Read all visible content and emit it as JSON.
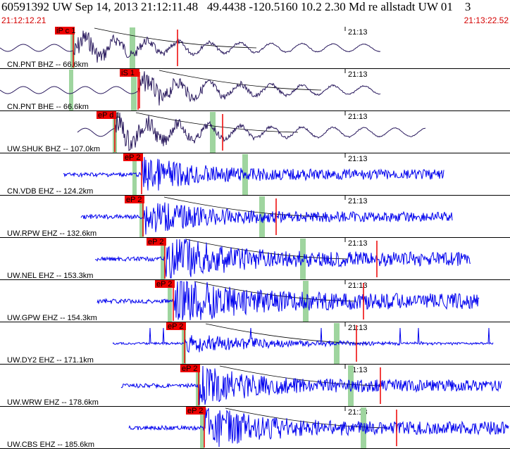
{
  "header": {
    "title": "60591392 UW Sep 14, 2013 21:12:11.48   49.4438 -120.5160 10.2 2.30 Md re allstadt UW 01    3",
    "start_time": "21:12:12.21",
    "end_time": "21:13:22.52"
  },
  "minute_label": "21:13",
  "colors": {
    "trace_dark": "#2a1a5e",
    "trace_blue": "#0000ee",
    "pick_red": "#ee0000",
    "phase_green": "#9fd59f"
  },
  "channels": [
    {
      "label": "CN.PNT BHZ -- 66.6km",
      "pick": "iP c 1",
      "color": "dark"
    },
    {
      "label": "CN.PNT BHE -- 66.6km",
      "pick": "iS 1",
      "color": "dark"
    },
    {
      "label": "UW.SHUK BHZ -- 107.0km",
      "pick": "eP d 1",
      "color": "dark"
    },
    {
      "label": "CN.VDB EHZ -- 124.2km",
      "pick": "eP 2",
      "color": "blue"
    },
    {
      "label": "UW.RPW EHZ -- 132.6km",
      "pick": "eP 2",
      "color": "blue"
    },
    {
      "label": "UW.NEL EHZ -- 153.3km",
      "pick": "eP 2",
      "color": "blue"
    },
    {
      "label": "UW.GPW EHZ -- 154.3km",
      "pick": "eP 2",
      "color": "blue"
    },
    {
      "label": "UW.DY2 EHZ -- 171.1km",
      "pick": "eP 2",
      "color": "blue"
    },
    {
      "label": "UW.WRW EHZ -- 178.6km",
      "pick": "eP 2",
      "color": "blue"
    },
    {
      "label": "UW.CBS EHZ -- 185.6km",
      "pick": "eP 2",
      "color": "blue"
    }
  ]
}
